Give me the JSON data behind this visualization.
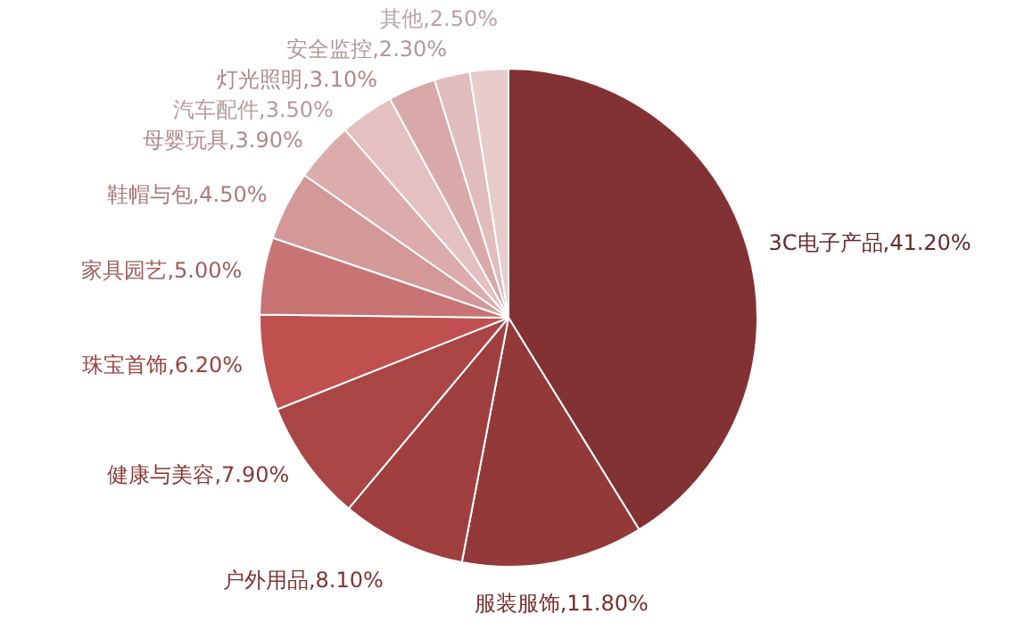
{
  "chart_data": {
    "type": "pie",
    "categories": [
      "3C电子产品",
      "服装服饰",
      "户外用品",
      "健康与美容",
      "珠宝首饰",
      "家具园艺",
      "鞋帽与包",
      "母婴玩具",
      "汽车配件",
      "灯光照明",
      "安全监控",
      "其他"
    ],
    "values": [
      41.2,
      11.8,
      8.1,
      7.9,
      6.2,
      5.0,
      4.5,
      3.9,
      3.5,
      3.1,
      2.3,
      2.5
    ],
    "value_labels": [
      "41.20%",
      "11.80%",
      "8.10%",
      "7.90%",
      "6.20%",
      "5.00%",
      "4.50%",
      "3.90%",
      "3.50%",
      "3.10%",
      "2.30%",
      "2.50%"
    ],
    "colors": [
      "#833234",
      "#94393a",
      "#a03f3f",
      "#aa4545",
      "#c05050",
      "#c87474",
      "#d49898",
      "#dcacac",
      "#e4c0c0",
      "#d9a9a9",
      "#e0bcbc",
      "#e8cccc"
    ],
    "legend": false
  }
}
